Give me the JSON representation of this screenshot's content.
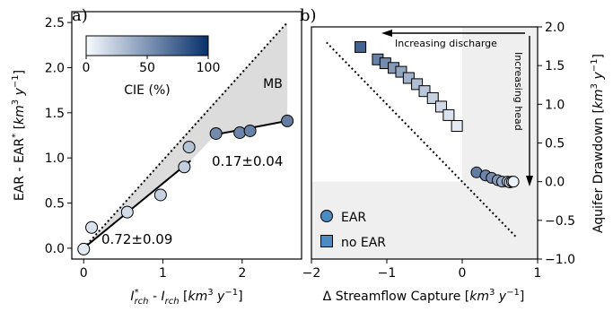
{
  "chart_data": [
    {
      "type": "scatter",
      "panel_label": "a)",
      "xlabel": "I*rch - Irch [km³ y⁻¹]",
      "ylabel": "EAR - EAR* [km³ y⁻¹]",
      "xlim": [
        -0.15,
        2.75
      ],
      "ylim": [
        -0.12,
        2.62
      ],
      "xticks": [
        "0",
        "1",
        "2"
      ],
      "yticks": [
        "0.0",
        "0.5",
        "1.0",
        "1.5",
        "2.0",
        "2.5"
      ],
      "grid": false,
      "annotations": {
        "mass_balance": "MB",
        "slope_low": "0.72±0.09",
        "slope_high": "0.17±0.04"
      },
      "colorbar": {
        "label": "CIE (%)",
        "ticks": [
          "0",
          "50",
          "100"
        ],
        "range": [
          0,
          100
        ],
        "colors": [
          "#f7fbff",
          "#08306b"
        ]
      },
      "points": [
        {
          "x": 0.0,
          "y": -0.01,
          "cie": 8
        },
        {
          "x": 0.1,
          "y": 0.23,
          "cie": 12
        },
        {
          "x": 0.55,
          "y": 0.4,
          "cie": 15
        },
        {
          "x": 0.97,
          "y": 0.59,
          "cie": 20
        },
        {
          "x": 1.27,
          "y": 0.9,
          "cie": 22
        },
        {
          "x": 1.33,
          "y": 1.12,
          "cie": 28
        },
        {
          "x": 1.67,
          "y": 1.27,
          "cie": 55
        },
        {
          "x": 1.97,
          "y": 1.28,
          "cie": 58
        },
        {
          "x": 2.1,
          "y": 1.3,
          "cie": 60
        },
        {
          "x": 2.57,
          "y": 1.41,
          "cie": 62
        }
      ],
      "fit_lines": [
        {
          "x": [
            0.0,
            1.35
          ],
          "y": [
            0.0,
            0.97
          ]
        },
        {
          "x": [
            1.67,
            2.57
          ],
          "y": [
            1.26,
            1.41
          ]
        }
      ],
      "mb_line": {
        "x": [
          0.0,
          2.57
        ],
        "y": [
          0.0,
          2.5
        ]
      },
      "shade_upper": {
        "x": [
          0.0,
          1.35,
          2.57
        ],
        "y": [
          0.0,
          1.33,
          2.5
        ]
      },
      "shade_lower": {
        "x": [
          0.0,
          1.35,
          1.67,
          2.57
        ],
        "y": [
          0.0,
          0.97,
          1.26,
          1.41
        ]
      }
    },
    {
      "type": "scatter",
      "panel_label": "b)",
      "xlabel": "Δ Streamflow Capture [km³ y⁻¹]",
      "ylabel": "Aquifer Drawdown [km³ y⁻¹]",
      "xlim": [
        -2,
        1
      ],
      "ylim": [
        -1,
        2
      ],
      "xticks": [
        "−2",
        "−1",
        "0",
        "1"
      ],
      "yticks": [
        "−1.0",
        "−0.5",
        "0.0",
        "0.5",
        "1.0",
        "1.5",
        "2.0"
      ],
      "grid": false,
      "legend": {
        "position": "bottom-left",
        "entries": [
          "EAR",
          "no EAR"
        ]
      },
      "annotations": {
        "discharge": "Increasing discharge",
        "head": "Increasing head"
      },
      "shading": {
        "quadrant_x_min": 0,
        "band_y_max": 0,
        "color": "#efefef"
      },
      "reference_line": {
        "x": [
          -1.8,
          -0.75,
          0.72
        ],
        "y": [
          1.8,
          0.75,
          -0.72
        ]
      },
      "series": [
        {
          "name": "EAR",
          "marker": "circle",
          "points": [
            {
              "x": 0.19,
              "y": 0.12,
              "cie": 62
            },
            {
              "x": 0.31,
              "y": 0.08,
              "cie": 58
            },
            {
              "x": 0.39,
              "y": 0.05,
              "cie": 55
            },
            {
              "x": 0.47,
              "y": 0.02,
              "cie": 50
            },
            {
              "x": 0.53,
              "y": 0.0,
              "cie": 40
            },
            {
              "x": 0.6,
              "y": 0.0,
              "cie": 30
            },
            {
              "x": 0.63,
              "y": -0.01,
              "cie": 20
            },
            {
              "x": 0.66,
              "y": 0.0,
              "cie": 10
            },
            {
              "x": 0.68,
              "y": 0.0,
              "cie": 5
            }
          ]
        },
        {
          "name": "no EAR",
          "marker": "square",
          "points": [
            {
              "x": -1.35,
              "y": 1.74,
              "cie": 75
            },
            {
              "x": -1.12,
              "y": 1.58,
              "cie": 60
            },
            {
              "x": -1.02,
              "y": 1.53,
              "cie": 55
            },
            {
              "x": -0.91,
              "y": 1.47,
              "cie": 48
            },
            {
              "x": -0.81,
              "y": 1.42,
              "cie": 42
            },
            {
              "x": -0.71,
              "y": 1.34,
              "cie": 36
            },
            {
              "x": -0.6,
              "y": 1.26,
              "cie": 30
            },
            {
              "x": -0.5,
              "y": 1.17,
              "cie": 25
            },
            {
              "x": -0.39,
              "y": 1.08,
              "cie": 20
            },
            {
              "x": -0.28,
              "y": 0.97,
              "cie": 16
            },
            {
              "x": -0.18,
              "y": 0.86,
              "cie": 12
            },
            {
              "x": -0.07,
              "y": 0.72,
              "cie": 8
            }
          ]
        }
      ]
    }
  ]
}
